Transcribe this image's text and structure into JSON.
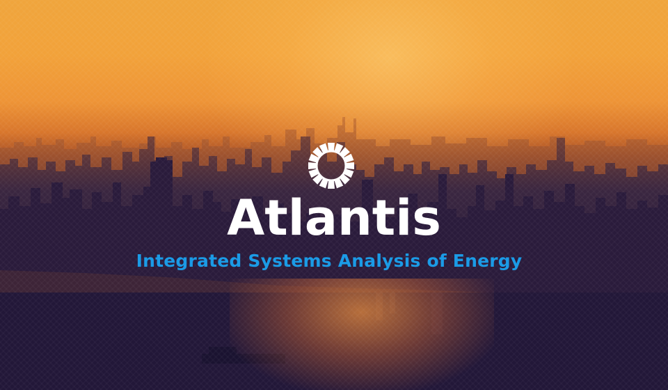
{
  "hero": {
    "brand_name": "Atlantis",
    "tagline": "Integrated Systems Analysis of Energy",
    "logo_icon": "sun-ring-icon",
    "colors": {
      "brand_text": "#ffffff",
      "tagline_text": "#1b9be6",
      "sky_top": "#f0a53c",
      "sky_horizon": "#d8762c",
      "city_silhouette": "#2a1c3c",
      "water": "#1c1432"
    }
  }
}
